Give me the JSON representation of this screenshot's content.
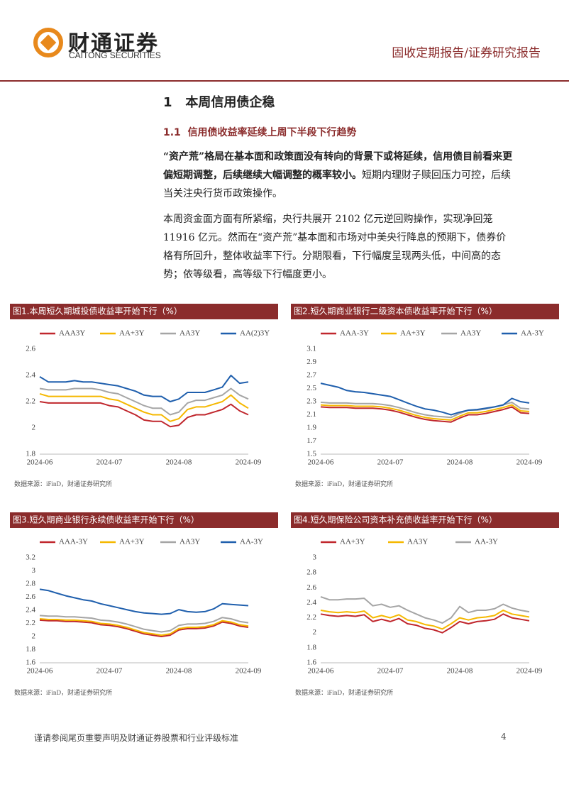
{
  "header": {
    "logo_cn": "财通证券",
    "logo_en": "CAITONG SECURITIES",
    "report_type": "固收定期报告/证券研究报告"
  },
  "section": {
    "number": "1",
    "title": "本周信用债企稳"
  },
  "subsection": {
    "number": "1.1",
    "title": "信用债收益率延续上周下半段下行趋势"
  },
  "paragraphs": [
    {
      "bold": "“资产荒”格局在基本面和政策面没有转向的背景下或将延续，信用债目前看来更偏短期调整，后续继续大幅调整的概率较小。",
      "text": "短期内理财子赎回压力可控，后续当关注央行货币政策操作。"
    },
    {
      "text": "本周资金面方面有所紧缩，央行共展开 2102 亿元逆回购操作，实现净回笼 11916 亿元。然而在“资产荒”基本面和市场对中美央行降息的预期下，债券价格有所回升，整体收益率下行。分期限看，下行幅度呈现两头低，中间高的态势；依等级看，高等级下行幅度更小。"
    }
  ],
  "chart_data": [
    {
      "type": "line",
      "title": "图1.本周短久期城投债收益率开始下行（%）",
      "source": "数据来源：iFinD，财通证券研究所",
      "categories": [
        "2024-06",
        null,
        null,
        null,
        null,
        null,
        null,
        null,
        "2024-07",
        null,
        null,
        null,
        null,
        null,
        null,
        null,
        "2024-08",
        null,
        null,
        null,
        null,
        null,
        null,
        null,
        "2024-09"
      ],
      "ylim": [
        1.8,
        2.6
      ],
      "yticks": [
        1.8,
        2,
        2.2,
        2.4,
        2.6
      ],
      "series": [
        {
          "name": "AAA3Y",
          "color": "#c0272d",
          "values": [
            2.2,
            2.19,
            2.19,
            2.19,
            2.19,
            2.19,
            2.19,
            2.19,
            2.17,
            2.16,
            2.13,
            2.1,
            2.06,
            2.05,
            2.05,
            2.01,
            2.02,
            2.08,
            2.1,
            2.1,
            2.12,
            2.14,
            2.18,
            2.13,
            2.1
          ]
        },
        {
          "name": "AA+3Y",
          "color": "#f5b800",
          "values": [
            2.26,
            2.24,
            2.24,
            2.24,
            2.24,
            2.24,
            2.24,
            2.24,
            2.22,
            2.21,
            2.18,
            2.15,
            2.12,
            2.1,
            2.1,
            2.05,
            2.07,
            2.14,
            2.16,
            2.16,
            2.18,
            2.2,
            2.25,
            2.19,
            2.15
          ]
        },
        {
          "name": "AA3Y",
          "color": "#a5a5a5",
          "values": [
            2.3,
            2.29,
            2.29,
            2.29,
            2.3,
            2.3,
            2.3,
            2.29,
            2.27,
            2.26,
            2.23,
            2.2,
            2.17,
            2.15,
            2.15,
            2.1,
            2.12,
            2.19,
            2.21,
            2.21,
            2.23,
            2.25,
            2.3,
            2.25,
            2.22
          ]
        },
        {
          "name": "AA(2)3Y",
          "color": "#1f5fad",
          "values": [
            2.39,
            2.35,
            2.35,
            2.35,
            2.36,
            2.35,
            2.35,
            2.34,
            2.33,
            2.32,
            2.3,
            2.28,
            2.25,
            2.24,
            2.24,
            2.2,
            2.22,
            2.27,
            2.27,
            2.27,
            2.29,
            2.31,
            2.4,
            2.34,
            2.35
          ]
        }
      ]
    },
    {
      "type": "line",
      "title": "图2.短久期商业银行二级资本债收益率开始下行（%）",
      "source": "数据来源：iFinD，财通证券研究所",
      "categories": [
        "2024-06",
        null,
        null,
        null,
        null,
        null,
        null,
        null,
        "2024-07",
        null,
        null,
        null,
        null,
        null,
        null,
        null,
        "2024-08",
        null,
        null,
        null,
        null,
        null,
        null,
        null,
        "2024-09"
      ],
      "ylim": [
        1.5,
        3.1
      ],
      "yticks": [
        1.5,
        1.7,
        1.9,
        2.1,
        2.3,
        2.5,
        2.7,
        2.9,
        3.1
      ],
      "series": [
        {
          "name": "AAA-3Y",
          "color": "#c0272d",
          "values": [
            2.22,
            2.21,
            2.21,
            2.21,
            2.2,
            2.2,
            2.2,
            2.19,
            2.17,
            2.14,
            2.1,
            2.06,
            2.03,
            2.01,
            2.0,
            1.99,
            2.05,
            2.1,
            2.1,
            2.12,
            2.15,
            2.18,
            2.22,
            2.13,
            2.12
          ]
        },
        {
          "name": "AA+3Y",
          "color": "#f5b800",
          "values": [
            2.25,
            2.24,
            2.24,
            2.24,
            2.23,
            2.23,
            2.23,
            2.22,
            2.2,
            2.17,
            2.13,
            2.09,
            2.06,
            2.04,
            2.03,
            2.02,
            2.08,
            2.13,
            2.13,
            2.15,
            2.18,
            2.21,
            2.25,
            2.16,
            2.15
          ]
        },
        {
          "name": "AA3Y",
          "color": "#a5a5a5",
          "values": [
            2.29,
            2.28,
            2.28,
            2.28,
            2.27,
            2.27,
            2.27,
            2.26,
            2.24,
            2.21,
            2.17,
            2.13,
            2.1,
            2.08,
            2.07,
            2.06,
            2.12,
            2.17,
            2.17,
            2.19,
            2.22,
            2.25,
            2.29,
            2.2,
            2.19
          ]
        },
        {
          "name": "AA-3Y",
          "color": "#1f5fad",
          "values": [
            2.58,
            2.55,
            2.52,
            2.47,
            2.45,
            2.44,
            2.42,
            2.4,
            2.38,
            2.33,
            2.28,
            2.23,
            2.19,
            2.17,
            2.14,
            2.1,
            2.14,
            2.17,
            2.18,
            2.2,
            2.22,
            2.25,
            2.35,
            2.3,
            2.28
          ]
        }
      ]
    },
    {
      "type": "line",
      "title": "图3.短久期商业银行永续债收益率开始下行（%）",
      "source": "数据来源：iFinD，财通证券研究所",
      "categories": [
        "2024-06",
        null,
        null,
        null,
        null,
        null,
        null,
        null,
        "2024-07",
        null,
        null,
        null,
        null,
        null,
        null,
        null,
        "2024-08",
        null,
        null,
        null,
        null,
        null,
        null,
        null,
        "2024-09"
      ],
      "ylim": [
        1.6,
        3.2
      ],
      "yticks": [
        1.6,
        1.8,
        2,
        2.2,
        2.4,
        2.6,
        2.8,
        3,
        3.2
      ],
      "series": [
        {
          "name": "AAA-3Y",
          "color": "#c0272d",
          "values": [
            2.25,
            2.24,
            2.24,
            2.23,
            2.23,
            2.22,
            2.21,
            2.18,
            2.17,
            2.15,
            2.12,
            2.08,
            2.04,
            2.02,
            2.0,
            2.02,
            2.1,
            2.12,
            2.12,
            2.13,
            2.16,
            2.22,
            2.2,
            2.16,
            2.14
          ]
        },
        {
          "name": "AA+3Y",
          "color": "#f5b800",
          "values": [
            2.27,
            2.26,
            2.26,
            2.25,
            2.25,
            2.24,
            2.23,
            2.2,
            2.19,
            2.17,
            2.14,
            2.1,
            2.06,
            2.04,
            2.02,
            2.04,
            2.12,
            2.14,
            2.14,
            2.15,
            2.18,
            2.24,
            2.22,
            2.18,
            2.16
          ]
        },
        {
          "name": "AA3Y",
          "color": "#a5a5a5",
          "values": [
            2.32,
            2.31,
            2.31,
            2.3,
            2.3,
            2.29,
            2.28,
            2.25,
            2.24,
            2.22,
            2.19,
            2.15,
            2.11,
            2.09,
            2.07,
            2.09,
            2.17,
            2.19,
            2.19,
            2.2,
            2.23,
            2.29,
            2.27,
            2.23,
            2.21
          ]
        },
        {
          "name": "AA-3Y",
          "color": "#1f5fad",
          "values": [
            2.72,
            2.7,
            2.66,
            2.62,
            2.59,
            2.56,
            2.54,
            2.5,
            2.47,
            2.44,
            2.41,
            2.38,
            2.36,
            2.35,
            2.34,
            2.35,
            2.41,
            2.38,
            2.37,
            2.38,
            2.42,
            2.5,
            2.49,
            2.48,
            2.47
          ]
        }
      ]
    },
    {
      "type": "line",
      "title": "图4.短久期保险公司资本补充债收益率开始下行（%）",
      "source": "数据来源：iFinD，财通证券研究所",
      "categories": [
        "2024-06",
        null,
        null,
        null,
        null,
        null,
        null,
        null,
        "2024-07",
        null,
        null,
        null,
        null,
        null,
        null,
        null,
        "2024-08",
        null,
        null,
        null,
        null,
        null,
        null,
        null,
        "2024-09"
      ],
      "ylim": [
        1.6,
        3
      ],
      "yticks": [
        1.6,
        1.8,
        2,
        2.2,
        2.4,
        2.6,
        2.8,
        3
      ],
      "series": [
        {
          "name": "AA+3Y",
          "color": "#c0272d",
          "values": [
            2.25,
            2.23,
            2.22,
            2.23,
            2.22,
            2.24,
            2.15,
            2.18,
            2.15,
            2.19,
            2.12,
            2.1,
            2.06,
            2.04,
            2.0,
            2.07,
            2.15,
            2.12,
            2.15,
            2.16,
            2.18,
            2.25,
            2.2,
            2.18,
            2.16
          ]
        },
        {
          "name": "AA3Y",
          "color": "#f5b800",
          "values": [
            2.3,
            2.28,
            2.27,
            2.28,
            2.27,
            2.29,
            2.2,
            2.23,
            2.2,
            2.24,
            2.17,
            2.15,
            2.11,
            2.09,
            2.05,
            2.12,
            2.2,
            2.17,
            2.2,
            2.21,
            2.23,
            2.3,
            2.25,
            2.23,
            2.21
          ]
        },
        {
          "name": "AA-3Y",
          "color": "#a5a5a5",
          "values": [
            2.48,
            2.44,
            2.44,
            2.45,
            2.45,
            2.46,
            2.36,
            2.38,
            2.34,
            2.36,
            2.3,
            2.25,
            2.2,
            2.17,
            2.13,
            2.2,
            2.35,
            2.27,
            2.3,
            2.3,
            2.32,
            2.38,
            2.33,
            2.3,
            2.28
          ]
        }
      ]
    }
  ],
  "footer": {
    "disclaimer": "谨请参阅尾页重要声明及财通证券股票和行业评级标准",
    "page": "4"
  }
}
